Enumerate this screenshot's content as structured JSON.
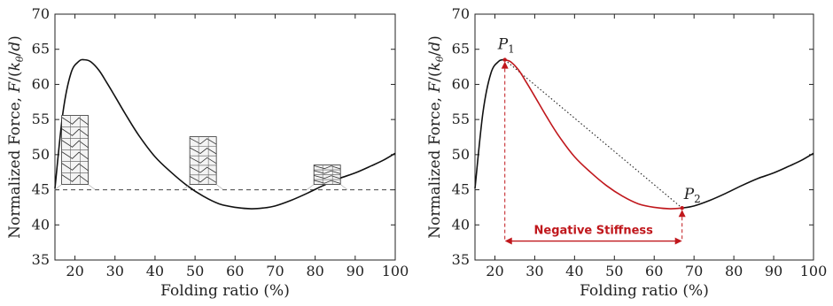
{
  "chart_data": [
    {
      "type": "line",
      "xlabel": "Folding ratio (%)",
      "ylabel": "Normalized Force, F/(kθ/d)",
      "xlim": [
        15,
        100
      ],
      "ylim": [
        35,
        70
      ],
      "xticks": [
        20,
        30,
        40,
        50,
        60,
        70,
        80,
        90,
        100
      ],
      "yticks": [
        35,
        40,
        45,
        50,
        55,
        60,
        65,
        70
      ],
      "grid": false,
      "series": [
        {
          "x": [
            15,
            17,
            19,
            21,
            22.5,
            24,
            26,
            28,
            30,
            33,
            36,
            40,
            44,
            48,
            52,
            56,
            60,
            64,
            67,
            70,
            74,
            78,
            82,
            86,
            90,
            94,
            97,
            100
          ],
          "y": [
            45.2,
            56,
            61.6,
            63.3,
            63.5,
            63.2,
            62,
            60.2,
            58.3,
            55.4,
            52.7,
            49.7,
            47.5,
            45.6,
            44.1,
            43,
            42.5,
            42.3,
            42.4,
            42.7,
            43.5,
            44.5,
            45.6,
            46.6,
            47.4,
            48.4,
            49.2,
            50.2
          ],
          "color": "#111111"
        }
      ],
      "reference_line": {
        "y": 45,
        "style": "dashed"
      },
      "annotations": [
        {
          "type": "folded-tube-illustration",
          "stage": "initial",
          "x": 20
        },
        {
          "type": "folded-tube-illustration",
          "stage": "mid",
          "x": 52
        },
        {
          "type": "folded-tube-illustration",
          "stage": "compact",
          "x": 83
        }
      ]
    },
    {
      "type": "line",
      "xlabel": "Folding ratio (%)",
      "ylabel": "Normalized Force, F/(kθ/d)",
      "xlim": [
        15,
        100
      ],
      "ylim": [
        35,
        70
      ],
      "xticks": [
        20,
        30,
        40,
        50,
        60,
        70,
        80,
        90,
        100
      ],
      "yticks": [
        35,
        40,
        45,
        50,
        55,
        60,
        65,
        70
      ],
      "grid": false,
      "series": [
        {
          "x": [
            15,
            17,
            19,
            21,
            22.5
          ],
          "y": [
            45.2,
            56,
            61.6,
            63.3,
            63.5
          ],
          "color": "#111111"
        },
        {
          "x": [
            22.5,
            24,
            26,
            28,
            30,
            33,
            36,
            40,
            44,
            48,
            52,
            56,
            60,
            64,
            67
          ],
          "y": [
            63.5,
            63.2,
            62,
            60.2,
            58.3,
            55.4,
            52.7,
            49.7,
            47.5,
            45.6,
            44.1,
            43,
            42.5,
            42.3,
            42.4
          ],
          "color": "#c0171c"
        },
        {
          "x": [
            67,
            70,
            74,
            78,
            82,
            86,
            90,
            94,
            97,
            100
          ],
          "y": [
            42.4,
            42.7,
            43.5,
            44.5,
            45.6,
            46.6,
            47.4,
            48.4,
            49.2,
            50.2
          ],
          "color": "#111111"
        }
      ],
      "points": [
        {
          "label_base": "P",
          "label_sub": "1",
          "x": 22.5,
          "y": 63.5
        },
        {
          "label_base": "P",
          "label_sub": "2",
          "x": 67,
          "y": 42.4
        }
      ],
      "secant_line": {
        "from": [
          22.5,
          63.5
        ],
        "to": [
          67,
          42.4
        ],
        "style": "dotted"
      },
      "region_annotation": {
        "text": "Negative Stiffness",
        "x_from": 22.5,
        "x_to": 67,
        "y": 37.7,
        "color": "#c0171c"
      }
    }
  ],
  "axis_texts": {
    "xlabel": "Folding ratio (%)",
    "ylabel_prefix": "Normalized Force, ",
    "ylabel_F": "F",
    "ylabel_k": "k",
    "ylabel_theta": "θ",
    "ylabel_d": "d"
  },
  "annotation_text": "Negative Stiffness"
}
